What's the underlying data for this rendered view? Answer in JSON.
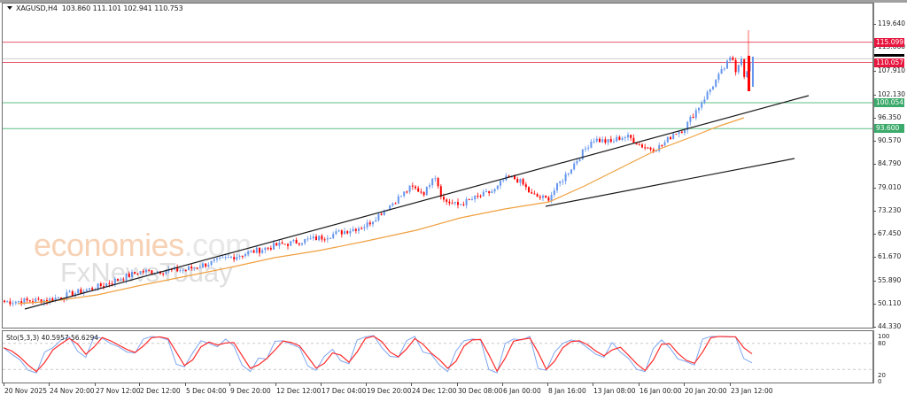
{
  "chart_header": {
    "symbol_timeframe": "XAGUSD,H4",
    "ohlc": "103.860 111.101 102.941 110.753"
  },
  "indicator_header": {
    "label": "Sto(5,3,3) 40.5957 56.6294"
  },
  "watermark": {
    "line1_main": "economies",
    "line1_suffix": ".com",
    "line2": "FxNewsToday"
  },
  "colors": {
    "bull_candle": "#6495ed",
    "bear_candle": "#ff0000",
    "resistance_line": "#e8566b",
    "support_line": "#5fbf85",
    "ma_line": "#f0a040",
    "trendline": "#1a1a1a",
    "sto_main": "#7fa7f0",
    "sto_signal": "#ff2a2a",
    "tag_red": "#e8163f",
    "tag_green": "#3caa6a"
  },
  "price_axis": {
    "ticks": [
      "119.640",
      "113.860",
      "107.910",
      "102.130",
      "96.350",
      "90.570",
      "84.790",
      "79.010",
      "73.230",
      "67.450",
      "61.670",
      "55.890",
      "50.110",
      "44.330"
    ],
    "tags": [
      {
        "value": "115.099",
        "type": "red"
      },
      {
        "value": "110.057",
        "type": "red"
      },
      {
        "value": "100.054",
        "type": "green"
      },
      {
        "value": "93.600",
        "type": "green"
      }
    ]
  },
  "sto_axis": {
    "ticks": [
      "100",
      "80",
      "20",
      "0"
    ]
  },
  "time_axis": {
    "labels": [
      "20 Nov 2025",
      "24 Nov 20:00",
      "27 Nov 12:00",
      "2 Dec 12:00",
      "5 Dec 04:00",
      "9 Dec 20:00",
      "12 Dec 12:00",
      "17 Dec 04:00",
      "19 Dec 20:00",
      "24 Dec 12:00",
      "30 Dec 08:00",
      "6 Jan 00:00",
      "8 Jan 16:00",
      "13 Jan 08:00",
      "16 Jan 00:00",
      "20 Jan 20:00",
      "23 Jan 12:00"
    ]
  },
  "chart_data": {
    "type": "candlestick",
    "title": "XAGUSD,H4",
    "ohlc_last": {
      "open": 103.86,
      "high": 111.101,
      "low": 102.941,
      "close": 110.753
    },
    "ylim": [
      44.33,
      122.0
    ],
    "horizontal_levels": [
      {
        "price": 115.099,
        "role": "resistance",
        "color": "red"
      },
      {
        "price": 110.057,
        "role": "resistance",
        "color": "red"
      },
      {
        "price": 100.054,
        "role": "support",
        "color": "green"
      },
      {
        "price": 93.6,
        "role": "support",
        "color": "green"
      }
    ],
    "trendlines": [
      {
        "from": [
          "20 Nov 2025",
          48.7
        ],
        "to": [
          "23 Jan 12:00",
          101.0
        ]
      },
      {
        "from": [
          "8 Jan 16:00",
          74.0
        ],
        "to": [
          "23 Jan 12:00",
          85.7
        ]
      }
    ],
    "moving_average": "orange, rising from ~50 to ~96",
    "approx_close_path": [
      {
        "x": "20 Nov 2025",
        "close": 50.5
      },
      {
        "x": "24 Nov 20:00",
        "close": 51.0
      },
      {
        "x": "27 Nov 12:00",
        "close": 54.0
      },
      {
        "x": "2 Dec 12:00",
        "close": 58.0
      },
      {
        "x": "5 Dec 04:00",
        "close": 58.5
      },
      {
        "x": "9 Dec 20:00",
        "close": 61.5
      },
      {
        "x": "12 Dec 12:00",
        "close": 64.5
      },
      {
        "x": "17 Dec 04:00",
        "close": 66.5
      },
      {
        "x": "19 Dec 20:00",
        "close": 69.5
      },
      {
        "x": "24 Dec 12:00",
        "close": 79.0
      },
      {
        "x": "30 Dec 08:00",
        "close": 74.5
      },
      {
        "x": "6 Jan 00:00",
        "close": 79.0
      },
      {
        "x": "8 Jan 16:00",
        "close": 76.0
      },
      {
        "x": "13 Jan 08:00",
        "close": 91.0
      },
      {
        "x": "16 Jan 00:00",
        "close": 89.0
      },
      {
        "x": "20 Jan 20:00",
        "close": 93.5
      },
      {
        "x": "23 Jan 12:00",
        "close": 110.8
      }
    ],
    "indicator": {
      "name": "Stochastic",
      "params": "5,3,3",
      "main": 40.5957,
      "signal": 56.6294,
      "levels": [
        80,
        20
      ],
      "range": [
        0,
        100
      ]
    },
    "xlabel": "",
    "ylabel": "",
    "grid": false
  }
}
